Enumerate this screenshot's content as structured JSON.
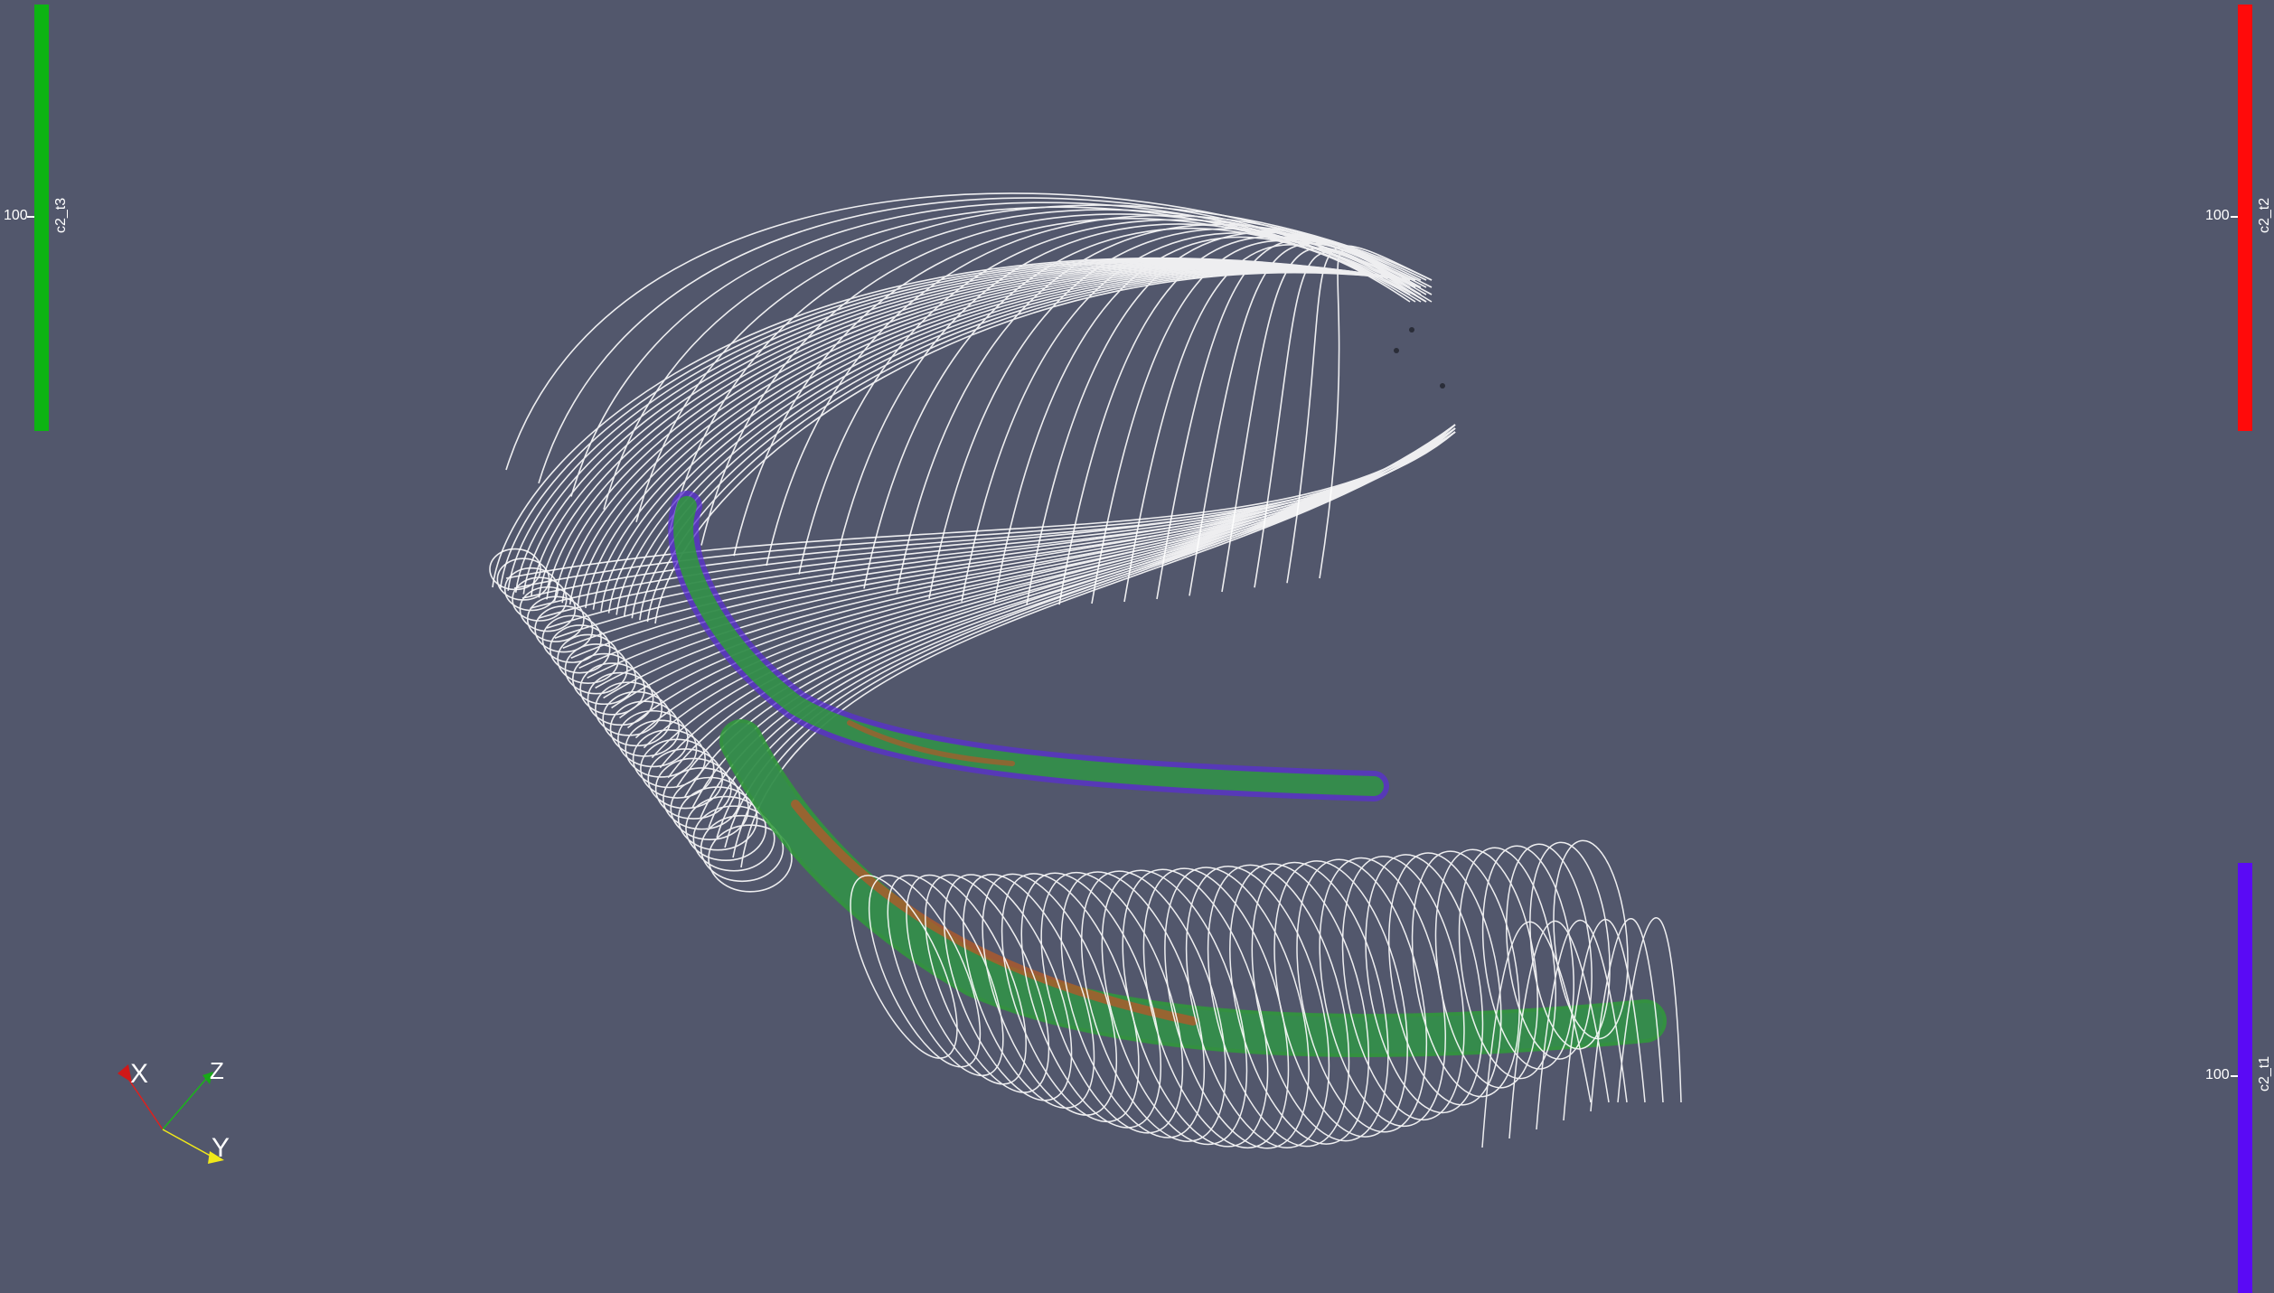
{
  "colors": {
    "background": "#52576c",
    "streamline": "#ffffff",
    "tube_green": "#2f9a3a",
    "tube_purple": "#5a2fd0",
    "tube_orange": "#b05a2a"
  },
  "colorbars": {
    "left": {
      "title": "c2_t3",
      "tick_label": "100",
      "color": "#0db413"
    },
    "right_top": {
      "title": "c2_t2",
      "tick_label": "100",
      "color": "#ff0a0a"
    },
    "right_bottom": {
      "title": "c2_t1",
      "tick_label": "100",
      "color": "#5a0af5"
    }
  },
  "orientation_axes": {
    "x_label": "X",
    "y_label": "Y",
    "z_label": "Z",
    "x_color": "#e0201c",
    "y_color": "#f0e81a",
    "z_color": "#1ab51a"
  }
}
